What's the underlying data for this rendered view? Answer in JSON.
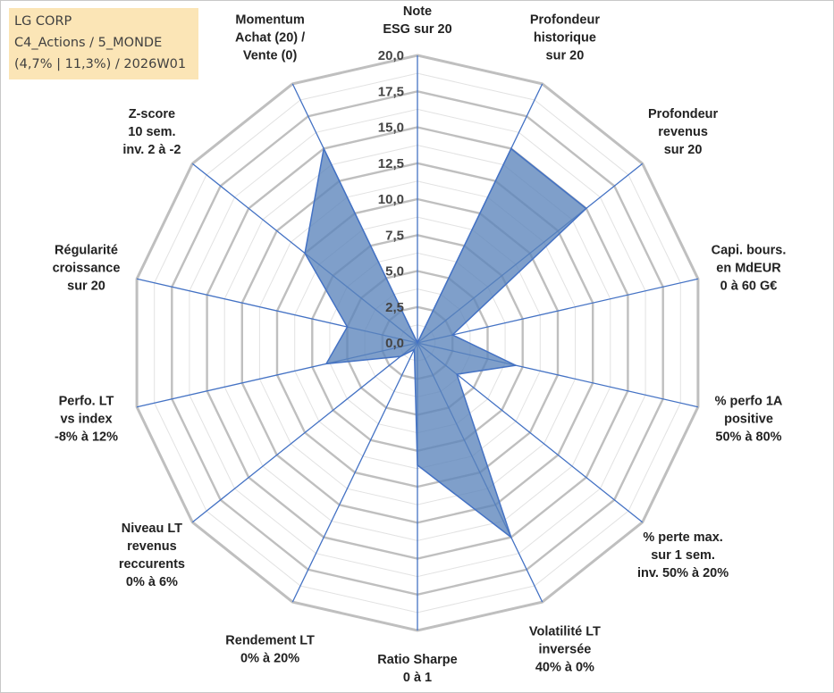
{
  "title_box": {
    "line1": "LG CORP",
    "line2": "C4_Actions / 5_MONDE",
    "line3": "(4,7% | 11,3%) / 2026W01"
  },
  "colors": {
    "fill": "#5b84bb",
    "stroke": "#4472c4",
    "grid": "#bfbfbf",
    "axis": "#4472c4",
    "title_box": "#fbe5b6"
  },
  "chart_data": {
    "type": "radar",
    "grid": true,
    "rlim": [
      0,
      20
    ],
    "ticks": [
      "0,0",
      "2,5",
      "5,0",
      "7,5",
      "10,0",
      "12,5",
      "15,0",
      "17,5",
      "20,0"
    ],
    "tick_values": [
      0,
      2.5,
      5,
      7.5,
      10,
      12.5,
      15,
      17.5,
      20
    ],
    "axes": [
      {
        "label": [
          "Note",
          "ESG sur 20"
        ],
        "value": 0
      },
      {
        "label": [
          "Profondeur",
          "historique",
          "sur 20"
        ],
        "value": 15
      },
      {
        "label": [
          "Profondeur",
          "revenus",
          "sur 20"
        ],
        "value": 15
      },
      {
        "label": [
          "Capi. bours.",
          "en MdEUR",
          "0 à 60 G€"
        ],
        "value": 2.5
      },
      {
        "label": [
          "% perfo 1A",
          "positive",
          "50% à 80%"
        ],
        "value": 7
      },
      {
        "label": [
          "% perte max.",
          "sur 1 sem.",
          "inv. 50% à 20%"
        ],
        "value": 3.5
      },
      {
        "label": [
          "Volatilité LT",
          "inversée",
          "40% à 0%"
        ],
        "value": 15
      },
      {
        "label": [
          "Ratio Sharpe",
          "0 à 1"
        ],
        "value": 8.5
      },
      {
        "label": [
          "Rendement LT",
          "0% à 20%"
        ],
        "value": 0.5
      },
      {
        "label": [
          "Niveau LT",
          "revenus",
          "reccurents",
          "0% à 6%"
        ],
        "value": 1.5
      },
      {
        "label": [
          "Perfo. LT",
          "vs index",
          "-8% à 12%"
        ],
        "value": 6.5
      },
      {
        "label": [
          "Régularité",
          "croissance",
          "sur 20"
        ],
        "value": 5
      },
      {
        "label": [
          "Z-score",
          "10 sem.",
          "inv. 2 à -2"
        ],
        "value": 10
      },
      {
        "label": [
          "Momentum",
          "Achat (20) /",
          "Vente (0)"
        ],
        "value": 15
      }
    ]
  }
}
